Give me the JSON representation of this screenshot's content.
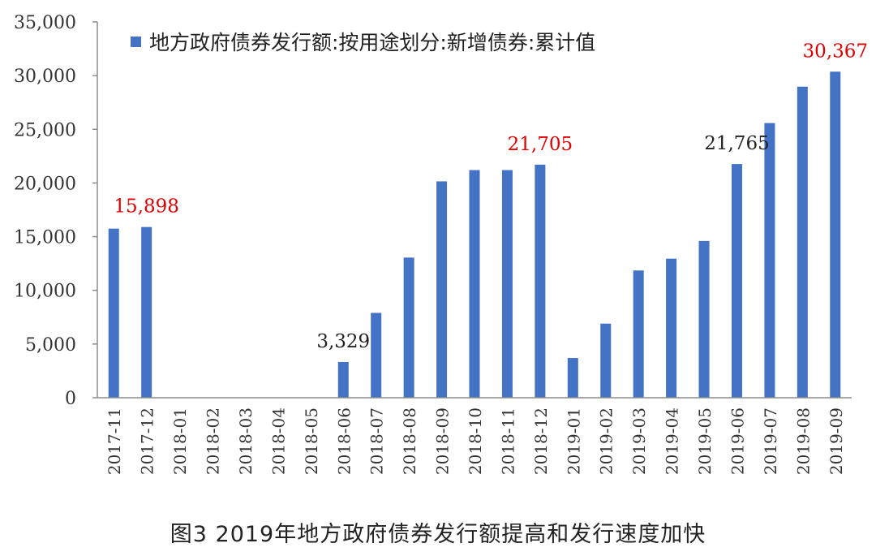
{
  "chart_data": {
    "type": "bar",
    "legend": "地方政府债券发行额:按用途划分:新增债券:累计值",
    "legend_position": "top-left",
    "categories": [
      "2017-11",
      "2017-12",
      "2018-01",
      "2018-02",
      "2018-03",
      "2018-04",
      "2018-05",
      "2018-06",
      "2018-07",
      "2018-08",
      "2018-09",
      "2018-10",
      "2018-11",
      "2018-12",
      "2019-01",
      "2019-02",
      "2019-03",
      "2019-04",
      "2019-05",
      "2019-06",
      "2019-07",
      "2019-08",
      "2019-09"
    ],
    "values": [
      15750,
      15898,
      0,
      0,
      0,
      0,
      0,
      3329,
      7900,
      13050,
      20150,
      21200,
      21200,
      21705,
      3700,
      6900,
      11850,
      12950,
      14600,
      21765,
      25580,
      28970,
      30367
    ],
    "ylim": [
      0,
      35000
    ],
    "yticks": [
      "0",
      "5,000",
      "10,000",
      "15,000",
      "20,000",
      "25,000",
      "30,000",
      "35,000"
    ],
    "grid": false,
    "annotations": [
      {
        "category": "2017-12",
        "text": "15,898",
        "color": "#e00000"
      },
      {
        "category": "2018-06",
        "text": "3,329",
        "color": "#222222"
      },
      {
        "category": "2018-12",
        "text": "21,705",
        "color": "#e00000"
      },
      {
        "category": "2019-06",
        "text": "21,765",
        "color": "#222222"
      },
      {
        "category": "2019-09",
        "text": "30,367",
        "color": "#e00000"
      }
    ],
    "bar_color": "#4472c4"
  },
  "caption": "图3 2019年地方政府债券发行额提高和发行速度加快"
}
